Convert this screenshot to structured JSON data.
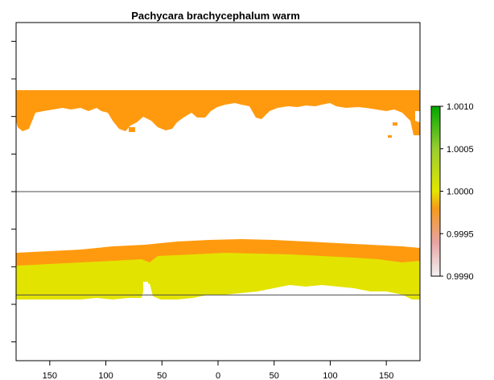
{
  "title": "Pachycara brachycephalum warm",
  "x_axis": {
    "ticks": [
      {
        "value": -150,
        "label": "150"
      },
      {
        "value": -100,
        "label": "100"
      },
      {
        "value": -50,
        "label": "50"
      },
      {
        "value": 0,
        "label": "0"
      },
      {
        "value": 50,
        "label": "50"
      },
      {
        "value": 100,
        "label": "100"
      },
      {
        "value": 150,
        "label": "150"
      }
    ],
    "range": [
      -180,
      180
    ]
  },
  "y_axis": {
    "range": [
      -90,
      90
    ],
    "tick_values": [
      -80,
      -60,
      -40,
      -20,
      0,
      20,
      40,
      60,
      80
    ],
    "labels_shown": false
  },
  "reference_lines": [
    0,
    -55
  ],
  "legend": {
    "ticks": [
      "1.0010",
      "1.0005",
      "1.0000",
      "0.9995",
      "0.9990"
    ],
    "range": [
      0.999,
      1.001
    ],
    "gradient_colors": [
      "#f2f2f2",
      "#e8a3a3",
      "#f59a1c",
      "#e2e600",
      "#9acd32",
      "#00a600"
    ]
  },
  "colors": {
    "orange": "#ff9a0f",
    "yellow": "#e3e300",
    "frame": "#000000",
    "line": "#4d4d4d"
  }
}
